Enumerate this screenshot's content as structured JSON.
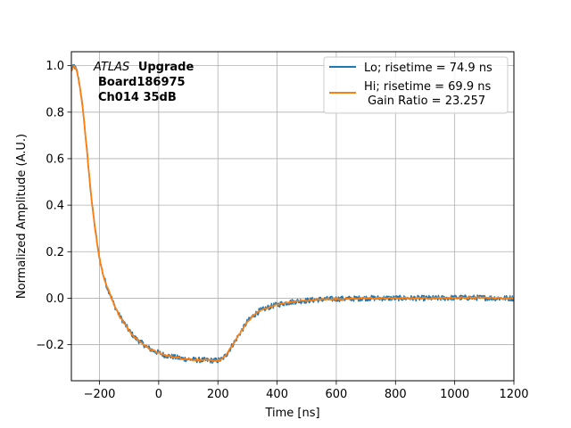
{
  "chart_data": {
    "type": "line",
    "title": "",
    "xlabel": "Time [ns]",
    "ylabel": "Normalized Amplitude (A.U.)",
    "xlim": [
      -295,
      1200
    ],
    "ylim": [
      -0.355,
      1.06
    ],
    "xticks": [
      -200,
      0,
      200,
      400,
      600,
      800,
      1000,
      1200
    ],
    "xtick_labels": [
      "−200",
      "0",
      "200",
      "400",
      "600",
      "800",
      "1000",
      "1200"
    ],
    "yticks": [
      -0.2,
      0.0,
      0.2,
      0.4,
      0.6,
      0.8,
      1.0
    ],
    "ytick_labels": [
      "−0.2",
      "0.0",
      "0.2",
      "0.4",
      "0.6",
      "0.8",
      "1.0"
    ],
    "grid": true,
    "legend_position": "top-right",
    "annotation": {
      "line1_italic": "ATLAS",
      "line1_bold": "Upgrade",
      "line2": "Board186975",
      "line3": "Ch014 35dB"
    },
    "series": [
      {
        "name": "Lo; risetime = 74.9 ns",
        "color": "#1f77b4",
        "noise": 0.012,
        "x": [
          -295,
          -285,
          -275,
          -265,
          -255,
          -245,
          -235,
          -225,
          -215,
          -205,
          -195,
          -185,
          -175,
          -165,
          -150,
          -135,
          -120,
          -100,
          -80,
          -60,
          -40,
          -20,
          0,
          20,
          40,
          60,
          80,
          100,
          120,
          140,
          160,
          180,
          200,
          215,
          230,
          245,
          260,
          280,
          300,
          320,
          340,
          360,
          380,
          400,
          430,
          460,
          500,
          550,
          600,
          650,
          700,
          750,
          800,
          850,
          900,
          950,
          1000,
          1050,
          1100,
          1150,
          1200
        ],
        "y": [
          0.98,
          1.0,
          0.97,
          0.9,
          0.8,
          0.67,
          0.53,
          0.4,
          0.3,
          0.21,
          0.14,
          0.09,
          0.05,
          0.02,
          -0.03,
          -0.07,
          -0.1,
          -0.14,
          -0.17,
          -0.19,
          -0.21,
          -0.225,
          -0.235,
          -0.245,
          -0.25,
          -0.255,
          -0.26,
          -0.262,
          -0.265,
          -0.266,
          -0.267,
          -0.268,
          -0.268,
          -0.262,
          -0.24,
          -0.21,
          -0.18,
          -0.14,
          -0.1,
          -0.075,
          -0.055,
          -0.045,
          -0.035,
          -0.028,
          -0.02,
          -0.014,
          -0.01,
          -0.005,
          -0.003,
          -0.002,
          0.0,
          0.0,
          0.0,
          0.0,
          0.0,
          0.0,
          0.002,
          0.002,
          0.002,
          0.0,
          0.0
        ]
      },
      {
        "name": "Hi; risetime = 69.9 ns\n Gain Ratio = 23.257",
        "color": "#ff7f0e",
        "noise": 0.0035,
        "x": [
          -295,
          -285,
          -275,
          -265,
          -255,
          -245,
          -235,
          -225,
          -215,
          -205,
          -195,
          -185,
          -175,
          -165,
          -150,
          -135,
          -120,
          -100,
          -80,
          -60,
          -40,
          -20,
          0,
          20,
          40,
          60,
          80,
          100,
          120,
          140,
          160,
          180,
          200,
          215,
          230,
          245,
          260,
          280,
          300,
          320,
          340,
          360,
          380,
          400,
          430,
          460,
          500,
          550,
          600,
          650,
          700,
          750,
          800,
          850,
          900,
          950,
          1000,
          1050,
          1100,
          1150,
          1200
        ],
        "y": [
          0.98,
          1.0,
          0.97,
          0.9,
          0.8,
          0.67,
          0.53,
          0.4,
          0.3,
          0.21,
          0.14,
          0.09,
          0.05,
          0.02,
          -0.03,
          -0.07,
          -0.1,
          -0.14,
          -0.17,
          -0.19,
          -0.21,
          -0.225,
          -0.235,
          -0.245,
          -0.25,
          -0.255,
          -0.26,
          -0.262,
          -0.265,
          -0.266,
          -0.267,
          -0.268,
          -0.268,
          -0.262,
          -0.24,
          -0.21,
          -0.18,
          -0.14,
          -0.1,
          -0.075,
          -0.055,
          -0.045,
          -0.035,
          -0.028,
          -0.02,
          -0.014,
          -0.01,
          -0.005,
          -0.003,
          -0.002,
          0.0,
          0.0,
          0.0,
          0.0,
          0.0,
          0.0,
          0.002,
          0.002,
          0.002,
          0.0,
          0.0
        ]
      }
    ]
  }
}
